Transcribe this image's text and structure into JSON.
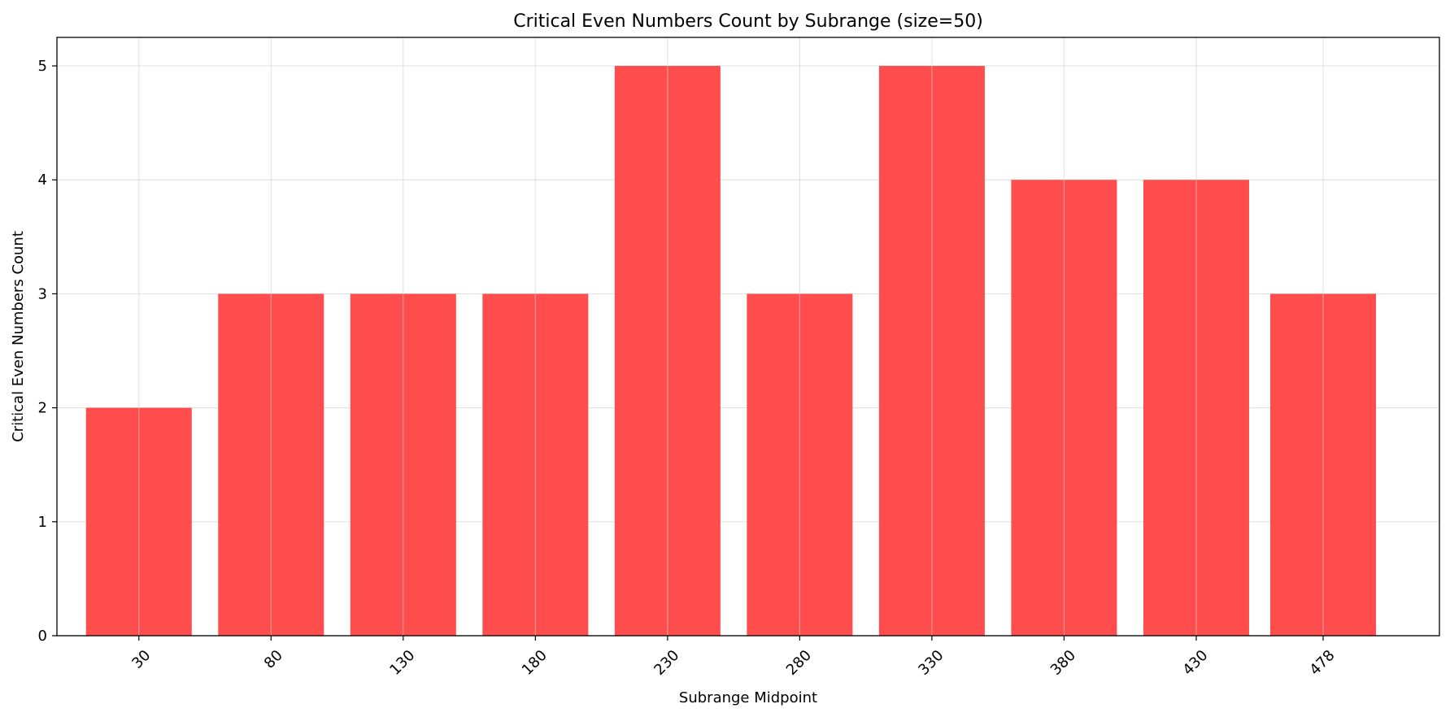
{
  "chart_data": {
    "type": "bar",
    "title": "Critical Even Numbers Count by Subrange (size=50)",
    "xlabel": "Subrange Midpoint",
    "ylabel": "Critical Even Numbers Count",
    "categories": [
      "30",
      "80",
      "130",
      "180",
      "230",
      "280",
      "330",
      "380",
      "430",
      "478"
    ],
    "x": [
      30,
      80,
      130,
      180,
      230,
      280,
      330,
      380,
      430,
      478
    ],
    "values": [
      2,
      3,
      3,
      3,
      5,
      3,
      5,
      4,
      4,
      3
    ],
    "ylim": [
      0,
      5.25
    ],
    "xlim": [
      -1,
      522
    ],
    "yticks": [
      "0",
      "1",
      "2",
      "3",
      "4",
      "5"
    ],
    "bar_width": 40,
    "grid": true,
    "legend": "none",
    "bar_color": "#ff4d4d",
    "tick_rotation": 45
  }
}
